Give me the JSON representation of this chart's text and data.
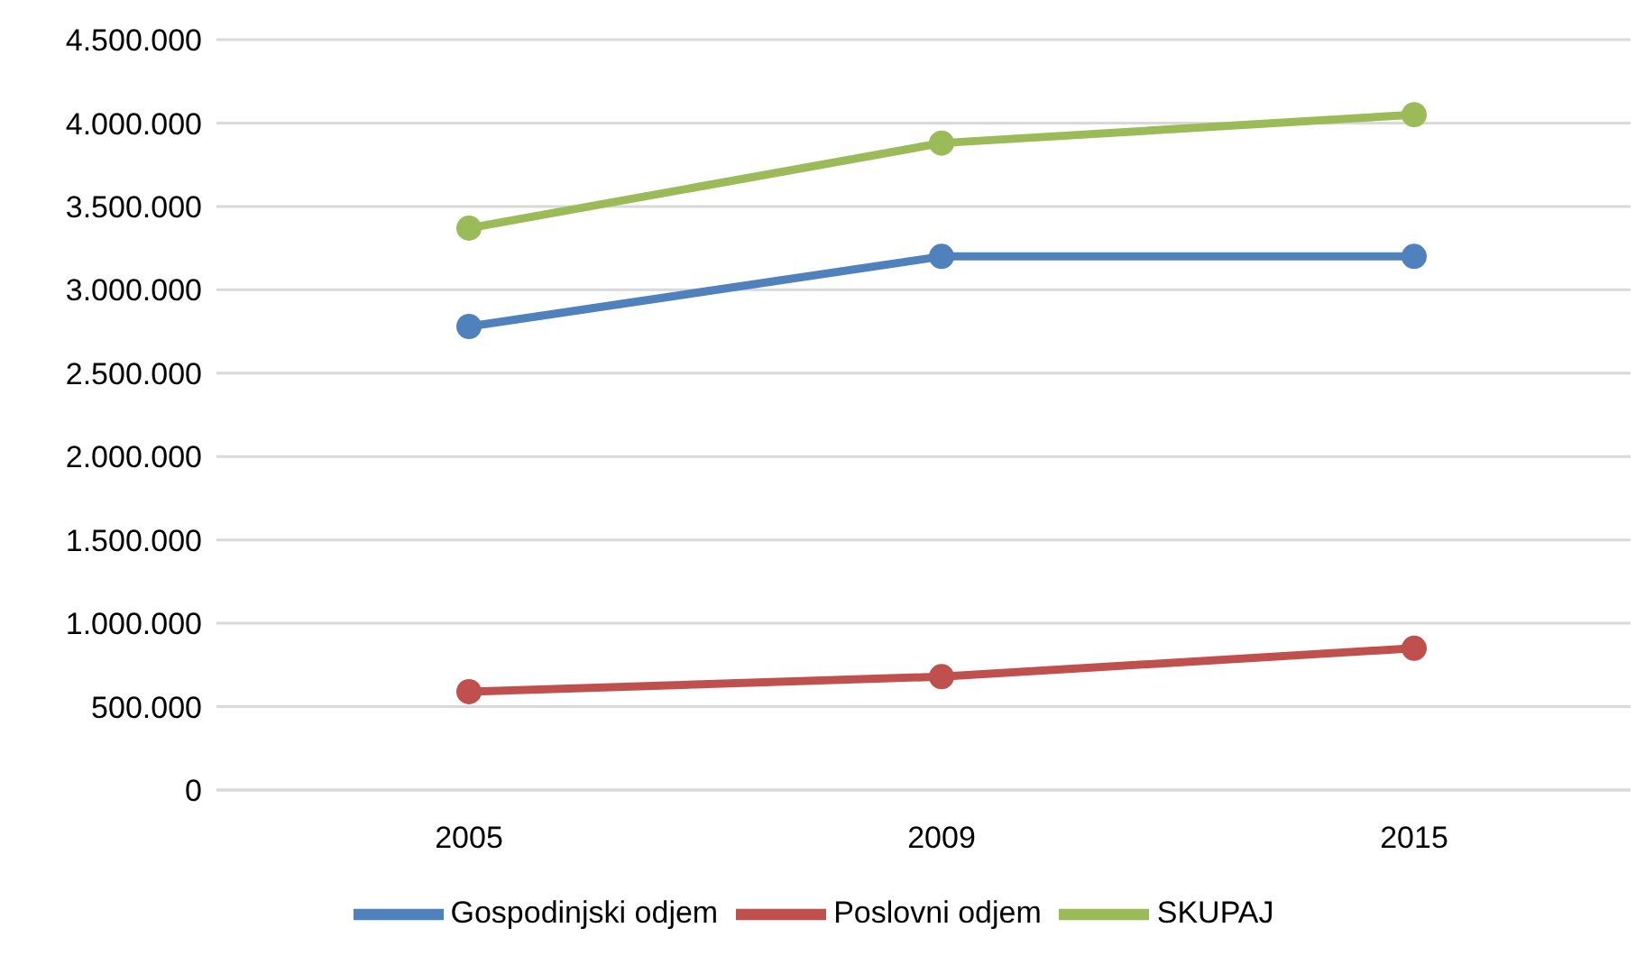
{
  "chart_data": {
    "type": "line",
    "categories": [
      "2005",
      "2009",
      "2015"
    ],
    "series": [
      {
        "name": "Gospodinjski odjem",
        "color": "#4f81bd",
        "values": [
          2780000,
          3200000,
          3200000
        ]
      },
      {
        "name": "Poslovni odjem",
        "color": "#c0504d",
        "values": [
          590000,
          680000,
          850000
        ]
      },
      {
        "name": "SKUPAJ",
        "color": "#9bbb59",
        "values": [
          3370000,
          3880000,
          4050000
        ]
      }
    ],
    "ylim": [
      0,
      4500000
    ],
    "yticks": [
      {
        "value": 0,
        "label": "0"
      },
      {
        "value": 500000,
        "label": "500.000"
      },
      {
        "value": 1000000,
        "label": "1.000.000"
      },
      {
        "value": 1500000,
        "label": "1.500.000"
      },
      {
        "value": 2000000,
        "label": "2.000.000"
      },
      {
        "value": 2500000,
        "label": "2.500.000"
      },
      {
        "value": 3000000,
        "label": "3.000.000"
      },
      {
        "value": 3500000,
        "label": "3.500.000"
      },
      {
        "value": 4000000,
        "label": "4.000.000"
      },
      {
        "value": 4500000,
        "label": "4.500.000"
      }
    ],
    "grid": "y",
    "legend": "bottom",
    "marker": "circle",
    "line_style": "solid"
  }
}
